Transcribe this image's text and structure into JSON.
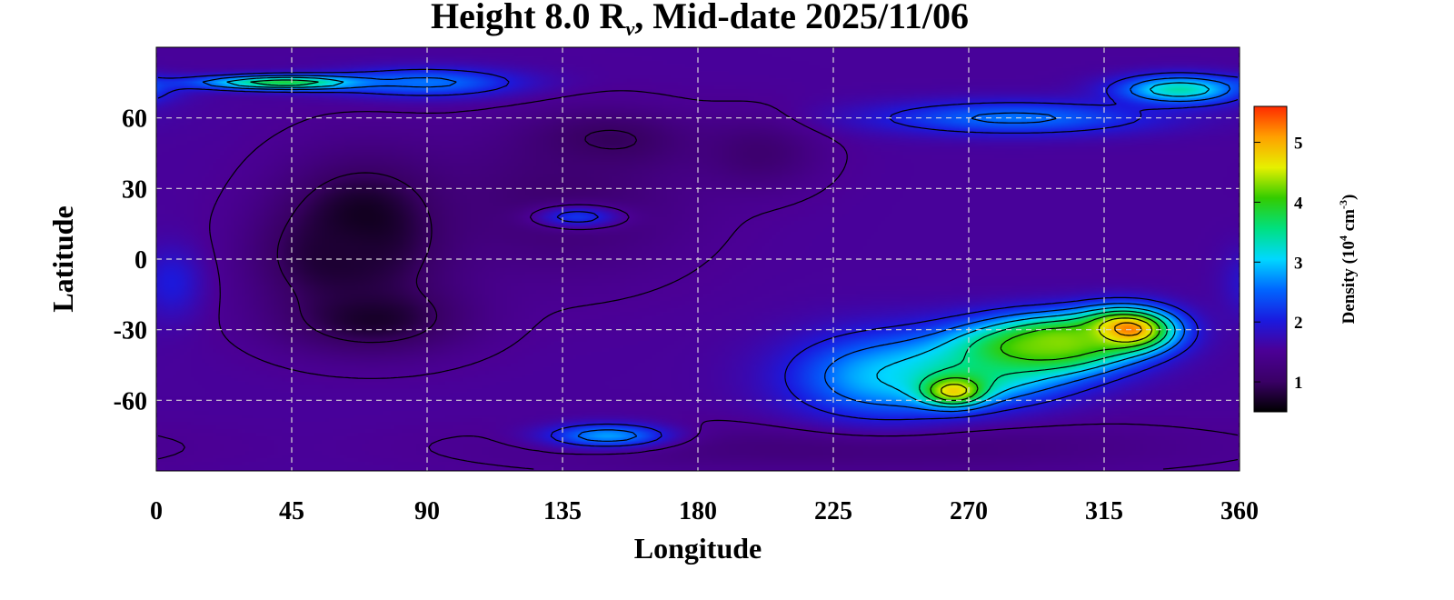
{
  "chart_data": {
    "type": "heatmap",
    "title_prefix": "Height 8.0 R",
    "title_subscript": "ν",
    "title_suffix": ", Mid-date 2025/11/06",
    "xlabel": "Longitude",
    "ylabel": "Latitude",
    "xlim": [
      0,
      360
    ],
    "ylim": [
      -90,
      90
    ],
    "x_ticks": [
      "0",
      "45",
      "90",
      "135",
      "180",
      "225",
      "270",
      "315",
      "360"
    ],
    "y_ticks": [
      "60",
      "30",
      "0",
      "-30",
      "-60"
    ],
    "grid": true,
    "colorbar": {
      "label_main": "Density (10",
      "label_exp1": "4",
      "label_mid": " cm",
      "label_exp2": "-3",
      "label_end": ")",
      "range": [
        0.5,
        5.6
      ],
      "ticks": [
        "1",
        "2",
        "3",
        "4",
        "5"
      ],
      "colors": [
        "#000000",
        "#3a0066",
        "#4b0096",
        "#1a1adf",
        "#0066ff",
        "#00d8ff",
        "#00e080",
        "#33cc00",
        "#e6f000",
        "#ffa000",
        "#ff2a00"
      ]
    },
    "background_density": 1.55,
    "features": [
      {
        "lon": 70,
        "lat": 15,
        "density": 0.55,
        "slon": 28,
        "slat": 28
      },
      {
        "lon": 72,
        "lat": -25,
        "density": 0.7,
        "slon": 30,
        "slat": 15
      },
      {
        "lon": 60,
        "lat": 0,
        "density": 0.75,
        "slon": 25,
        "slat": 20
      },
      {
        "lon": 150,
        "lat": 50,
        "density": 0.85,
        "slon": 25,
        "slat": 12
      },
      {
        "lon": 135,
        "lat": 25,
        "density": 1.1,
        "slon": 40,
        "slat": 30
      },
      {
        "lon": 200,
        "lat": 45,
        "density": 1.1,
        "slon": 20,
        "slat": 15
      },
      {
        "lon": 230,
        "lat": -80,
        "density": 1.2,
        "slon": 100,
        "slat": 10
      },
      {
        "lon": 45,
        "lat": 75,
        "density": 4.0,
        "slon": 30,
        "slat": 3
      },
      {
        "lon": 90,
        "lat": 75,
        "density": 2.6,
        "slon": 30,
        "slat": 6
      },
      {
        "lon": 340,
        "lat": 72,
        "density": 3.4,
        "slon": 20,
        "slat": 6
      },
      {
        "lon": 285,
        "lat": 60,
        "density": 2.6,
        "slon": 45,
        "slat": 7
      },
      {
        "lon": 240,
        "lat": -50,
        "density": 2.8,
        "slon": 30,
        "slat": 18
      },
      {
        "lon": 270,
        "lat": -50,
        "density": 3.3,
        "slon": 30,
        "slat": 12
      },
      {
        "lon": 290,
        "lat": -38,
        "density": 4.0,
        "slon": 30,
        "slat": 12
      },
      {
        "lon": 322,
        "lat": -30,
        "density": 5.5,
        "slon": 16,
        "slat": 9
      },
      {
        "lon": 300,
        "lat": -35,
        "density": 4.3,
        "slon": 20,
        "slat": 10
      },
      {
        "lon": 265,
        "lat": -56,
        "density": 4.8,
        "slon": 10,
        "slat": 6
      },
      {
        "lon": 150,
        "lat": -75,
        "density": 2.8,
        "slon": 20,
        "slat": 5
      },
      {
        "lon": 140,
        "lat": 18,
        "density": 2.2,
        "slon": 15,
        "slat": 5
      },
      {
        "lon": 5,
        "lat": -10,
        "density": 2.0,
        "slon": 10,
        "slat": 15
      }
    ]
  }
}
